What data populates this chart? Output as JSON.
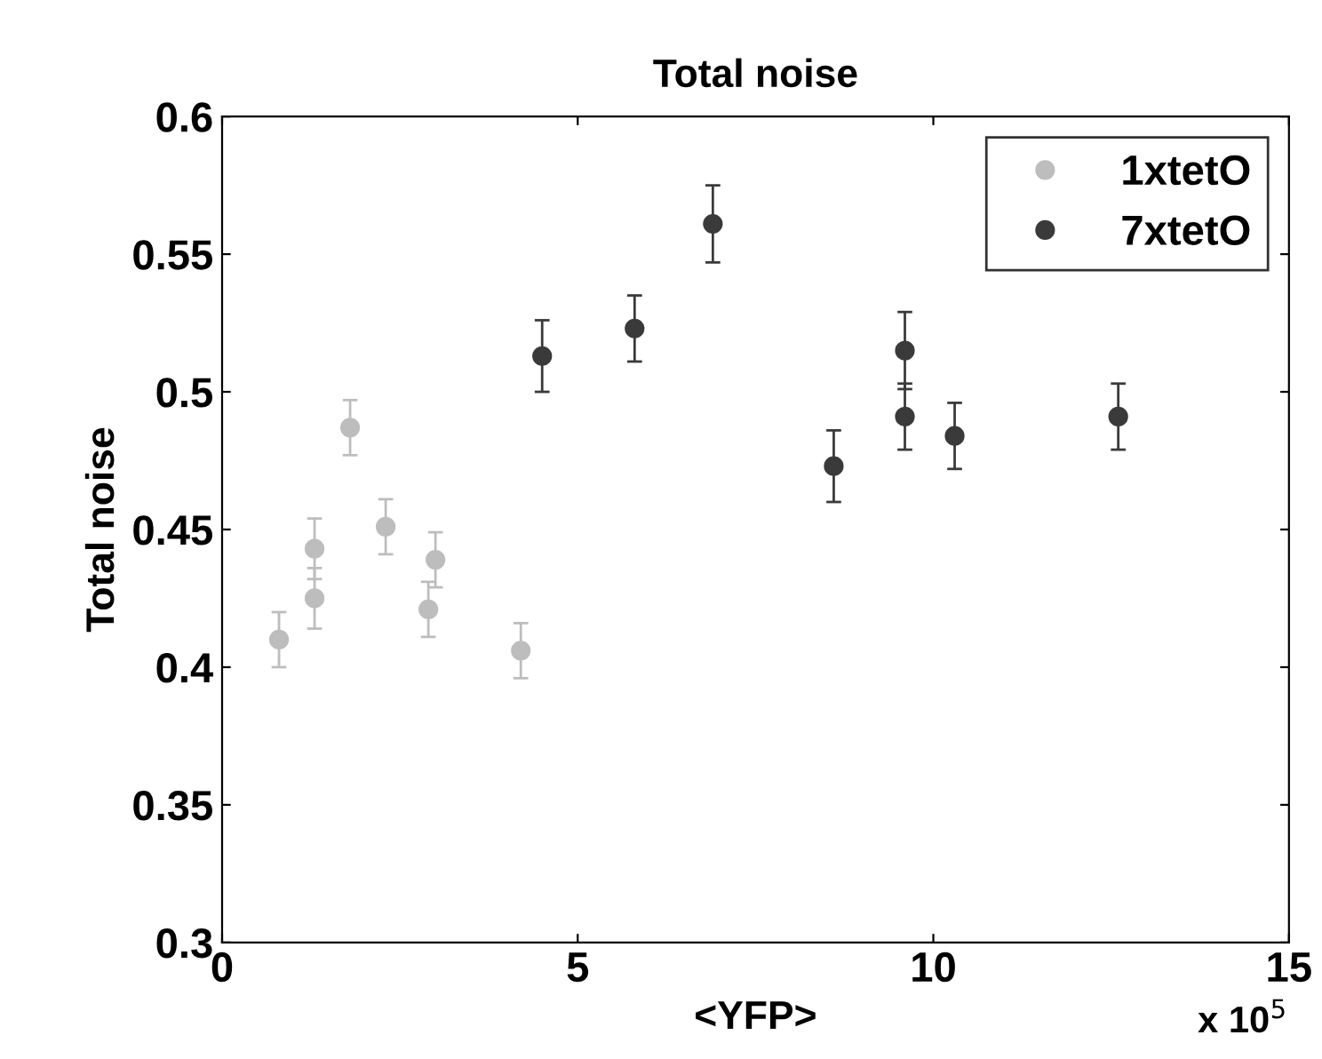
{
  "chart_data": {
    "type": "scatter",
    "title": "Total noise",
    "xlabel": "<YFP>",
    "ylabel": "Total noise",
    "annotations": [
      "x 10$^{5}$"
    ],
    "xlim": [
      0,
      15
    ],
    "xticks": [
      0,
      5,
      10,
      15
    ],
    "ylim": [
      0.3,
      0.6
    ],
    "yticks": [
      0.3,
      0.35,
      0.4,
      0.45,
      0.5,
      0.55,
      0.6
    ],
    "grid": false,
    "legend": "top right",
    "marker": "circle",
    "series": [
      {
        "name": "1xtetO",
        "color": "#bdbdbd",
        "x": [
          0.8,
          1.3,
          1.3,
          1.8,
          2.3,
          2.9,
          3.0,
          4.2
        ],
        "values": [
          0.41,
          0.443,
          0.425,
          0.487,
          0.451,
          0.421,
          0.439,
          0.406
        ],
        "errors": [
          0.01,
          0.011,
          0.011,
          0.01,
          0.01,
          0.01,
          0.01,
          0.01
        ]
      },
      {
        "name": "7xtetO",
        "color": "#3a3a3a",
        "x": [
          4.5,
          5.8,
          6.9,
          8.6,
          9.6,
          9.6,
          10.3,
          12.6
        ],
        "values": [
          0.513,
          0.523,
          0.561,
          0.473,
          0.515,
          0.491,
          0.484,
          0.491
        ],
        "errors": [
          0.013,
          0.012,
          0.014,
          0.013,
          0.014,
          0.012,
          0.012,
          0.012
        ]
      }
    ]
  }
}
